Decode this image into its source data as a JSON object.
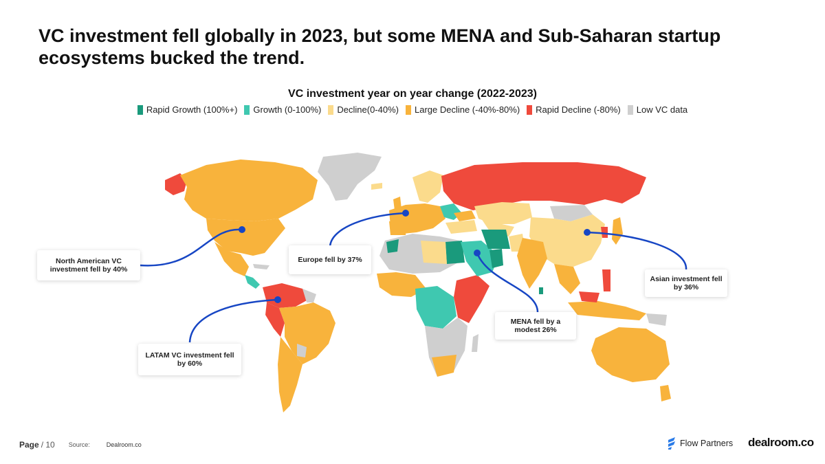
{
  "page": {
    "title": "VC investment fell globally in 2023, but some MENA and Sub-Saharan startup ecosystems bucked the trend."
  },
  "map": {
    "title": "VC investment year on year change (2022-2023)",
    "legend": [
      {
        "label": "Rapid Growth (100%+)",
        "color": "#1a9a7c"
      },
      {
        "label": "Growth (0-100%)",
        "color": "#3fc8b0"
      },
      {
        "label": "Decline(0-40%)",
        "color": "#fbdb8c"
      },
      {
        "label": "Large Decline (-40%-80%)",
        "color": "#f8b33c"
      },
      {
        "label": "Rapid Decline (-80%)",
        "color": "#ef4a3c"
      },
      {
        "label": "Low VC data",
        "color": "#cfcfcf"
      }
    ],
    "marker_color": "#1746c4",
    "callouts": {
      "north_america": "North American VC investment fell by 40%",
      "europe": "Europe fell by 37%",
      "mena": "MENA fell by a modest 26%",
      "asia": "Asian investment fell by 36%",
      "latam": "LATAM VC investment fell by 60%"
    }
  },
  "footer": {
    "page_label": "Page",
    "page_number": "/ 10",
    "source_label": "Source:",
    "source_value": "Dealroom.co",
    "brand_flow": "Flow Partners",
    "brand_dealroom": "dealroom.co"
  }
}
